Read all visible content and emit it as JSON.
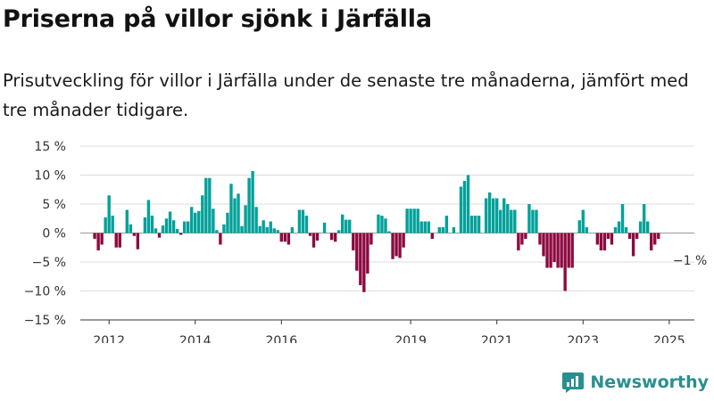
{
  "title": "Priserna på villor sjönk i Järfälla",
  "subtitle": "Prisutveckling för villor i Järfälla under de senaste tre månaderna, jämfört med tre månader tidigare.",
  "brand": "Newsworthy",
  "colors": {
    "positive": "#00a19a",
    "negative": "#8c0a3f",
    "grid": "#dddddd",
    "brand": "#2a8f8f"
  },
  "chart_data": {
    "type": "bar",
    "title": "",
    "xlabel": "",
    "ylabel": "",
    "ylim": [
      -15,
      15
    ],
    "yticks": [
      15,
      10,
      5,
      0,
      -5,
      -10,
      -15
    ],
    "ytick_labels": [
      "15 %",
      "10 %",
      "5 %",
      "0 %",
      "−5 %",
      "−10 %",
      "−15 %"
    ],
    "xtick_labels": [
      "2012",
      "2014",
      "2016",
      "2019",
      "2021",
      "2023",
      "2025"
    ],
    "xtick_dates": [
      "2012-01",
      "2014-01",
      "2016-01",
      "2019-01",
      "2021-01",
      "2023-01",
      "2025-01"
    ],
    "x_range": [
      "2011-05",
      "2025-08"
    ],
    "annotation": {
      "label": "−1 %",
      "date": "2025-02",
      "value": -1
    },
    "series": [
      {
        "values": [
          [
            "2011-09",
            -1.0
          ],
          [
            "2011-10",
            -3.0
          ],
          [
            "2011-11",
            -2.0
          ],
          [
            "2011-12",
            2.7
          ],
          [
            "2012-01",
            6.5
          ],
          [
            "2012-02",
            3.0
          ],
          [
            "2012-03",
            -2.5
          ],
          [
            "2012-04",
            -2.5
          ],
          [
            "2012-05",
            0.0
          ],
          [
            "2012-06",
            4.0
          ],
          [
            "2012-07",
            1.5
          ],
          [
            "2012-08",
            -0.5
          ],
          [
            "2012-09",
            -2.8
          ],
          [
            "2012-10",
            0.0
          ],
          [
            "2012-11",
            2.7
          ],
          [
            "2012-12",
            5.7
          ],
          [
            "2013-01",
            3.0
          ],
          [
            "2013-02",
            0.8
          ],
          [
            "2013-03",
            -0.8
          ],
          [
            "2013-04",
            1.3
          ],
          [
            "2013-05",
            2.5
          ],
          [
            "2013-06",
            3.7
          ],
          [
            "2013-07",
            2.2
          ],
          [
            "2013-08",
            0.7
          ],
          [
            "2013-09",
            -0.3
          ],
          [
            "2013-10",
            2.0
          ],
          [
            "2013-11",
            2.0
          ],
          [
            "2013-12",
            4.5
          ],
          [
            "2014-01",
            3.5
          ],
          [
            "2014-02",
            3.8
          ],
          [
            "2014-03",
            6.5
          ],
          [
            "2014-04",
            9.5
          ],
          [
            "2014-05",
            9.5
          ],
          [
            "2014-06",
            4.2
          ],
          [
            "2014-07",
            0.5
          ],
          [
            "2014-08",
            -2.0
          ],
          [
            "2014-09",
            1.5
          ],
          [
            "2014-10",
            3.5
          ],
          [
            "2014-11",
            8.5
          ],
          [
            "2014-12",
            6.0
          ],
          [
            "2015-01",
            6.8
          ],
          [
            "2015-02",
            1.2
          ],
          [
            "2015-03",
            4.8
          ],
          [
            "2015-04",
            9.5
          ],
          [
            "2015-05",
            10.7
          ],
          [
            "2015-06",
            4.5
          ],
          [
            "2015-07",
            1.2
          ],
          [
            "2015-08",
            2.2
          ],
          [
            "2015-09",
            1.0
          ],
          [
            "2015-10",
            2.0
          ],
          [
            "2015-11",
            0.8
          ],
          [
            "2015-12",
            0.5
          ],
          [
            "2016-01",
            -1.5
          ],
          [
            "2016-02",
            -1.5
          ],
          [
            "2016-03",
            -2.0
          ],
          [
            "2016-04",
            1.0
          ],
          [
            "2016-05",
            0.0
          ],
          [
            "2016-06",
            4.0
          ],
          [
            "2016-07",
            4.0
          ],
          [
            "2016-08",
            3.0
          ],
          [
            "2016-09",
            -0.5
          ],
          [
            "2016-10",
            -2.5
          ],
          [
            "2016-11",
            -1.3
          ],
          [
            "2016-12",
            0.0
          ],
          [
            "2017-01",
            1.8
          ],
          [
            "2017-02",
            0.0
          ],
          [
            "2017-03",
            -1.2
          ],
          [
            "2017-04",
            -1.5
          ],
          [
            "2017-05",
            0.5
          ],
          [
            "2017-06",
            3.2
          ],
          [
            "2017-07",
            2.3
          ],
          [
            "2017-08",
            2.3
          ],
          [
            "2017-09",
            -3.0
          ],
          [
            "2017-10",
            -6.5
          ],
          [
            "2017-11",
            -9.0
          ],
          [
            "2017-12",
            -10.2
          ],
          [
            "2018-01",
            -7.0
          ],
          [
            "2018-02",
            -2.0
          ],
          [
            "2018-03",
            0.0
          ],
          [
            "2018-04",
            3.2
          ],
          [
            "2018-05",
            3.0
          ],
          [
            "2018-06",
            2.5
          ],
          [
            "2018-07",
            0.3
          ],
          [
            "2018-08",
            -4.5
          ],
          [
            "2018-09",
            -4.0
          ],
          [
            "2018-10",
            -4.3
          ],
          [
            "2018-11",
            -2.5
          ],
          [
            "2018-12",
            4.2
          ],
          [
            "2019-01",
            4.2
          ],
          [
            "2019-02",
            4.2
          ],
          [
            "2019-03",
            4.2
          ],
          [
            "2019-04",
            2.0
          ],
          [
            "2019-05",
            2.0
          ],
          [
            "2019-06",
            2.0
          ],
          [
            "2019-07",
            -1.0
          ],
          [
            "2019-08",
            0.0
          ],
          [
            "2019-09",
            1.0
          ],
          [
            "2019-10",
            1.0
          ],
          [
            "2019-11",
            3.0
          ],
          [
            "2019-12",
            0.0
          ],
          [
            "2020-01",
            1.0
          ],
          [
            "2020-02",
            0.0
          ],
          [
            "2020-03",
            8.0
          ],
          [
            "2020-04",
            9.0
          ],
          [
            "2020-05",
            10.0
          ],
          [
            "2020-06",
            3.0
          ],
          [
            "2020-07",
            3.0
          ],
          [
            "2020-08",
            3.0
          ],
          [
            "2020-09",
            0.0
          ],
          [
            "2020-10",
            6.0
          ],
          [
            "2020-11",
            7.0
          ],
          [
            "2020-12",
            6.0
          ],
          [
            "2021-01",
            6.0
          ],
          [
            "2021-02",
            4.0
          ],
          [
            "2021-03",
            6.0
          ],
          [
            "2021-04",
            5.0
          ],
          [
            "2021-05",
            4.0
          ],
          [
            "2021-06",
            4.0
          ],
          [
            "2021-07",
            -3.0
          ],
          [
            "2021-08",
            -2.0
          ],
          [
            "2021-09",
            -1.0
          ],
          [
            "2021-10",
            5.0
          ],
          [
            "2021-11",
            4.0
          ],
          [
            "2021-12",
            4.0
          ],
          [
            "2022-01",
            -2.0
          ],
          [
            "2022-02",
            -4.0
          ],
          [
            "2022-03",
            -6.0
          ],
          [
            "2022-04",
            -6.0
          ],
          [
            "2022-05",
            -5.0
          ],
          [
            "2022-06",
            -6.0
          ],
          [
            "2022-07",
            -6.0
          ],
          [
            "2022-08",
            -10.0
          ],
          [
            "2022-09",
            -6.0
          ],
          [
            "2022-10",
            -6.0
          ],
          [
            "2022-11",
            0.0
          ],
          [
            "2022-12",
            2.2
          ],
          [
            "2023-01",
            4.0
          ],
          [
            "2023-02",
            1.0
          ],
          [
            "2023-03",
            0.0
          ],
          [
            "2023-04",
            0.0
          ],
          [
            "2023-05",
            -2.0
          ],
          [
            "2023-06",
            -3.0
          ],
          [
            "2023-07",
            -3.0
          ],
          [
            "2023-08",
            -1.0
          ],
          [
            "2023-09",
            -2.0
          ],
          [
            "2023-10",
            1.0
          ],
          [
            "2023-11",
            2.0
          ],
          [
            "2023-12",
            5.0
          ],
          [
            "2024-01",
            1.0
          ],
          [
            "2024-02",
            -1.0
          ],
          [
            "2024-03",
            -4.0
          ],
          [
            "2024-04",
            -1.0
          ],
          [
            "2024-05",
            2.0
          ],
          [
            "2024-06",
            5.0
          ],
          [
            "2024-07",
            2.0
          ],
          [
            "2024-08",
            -3.0
          ],
          [
            "2024-09",
            -2.0
          ],
          [
            "2024-10",
            -1.0
          ]
        ]
      }
    ]
  }
}
